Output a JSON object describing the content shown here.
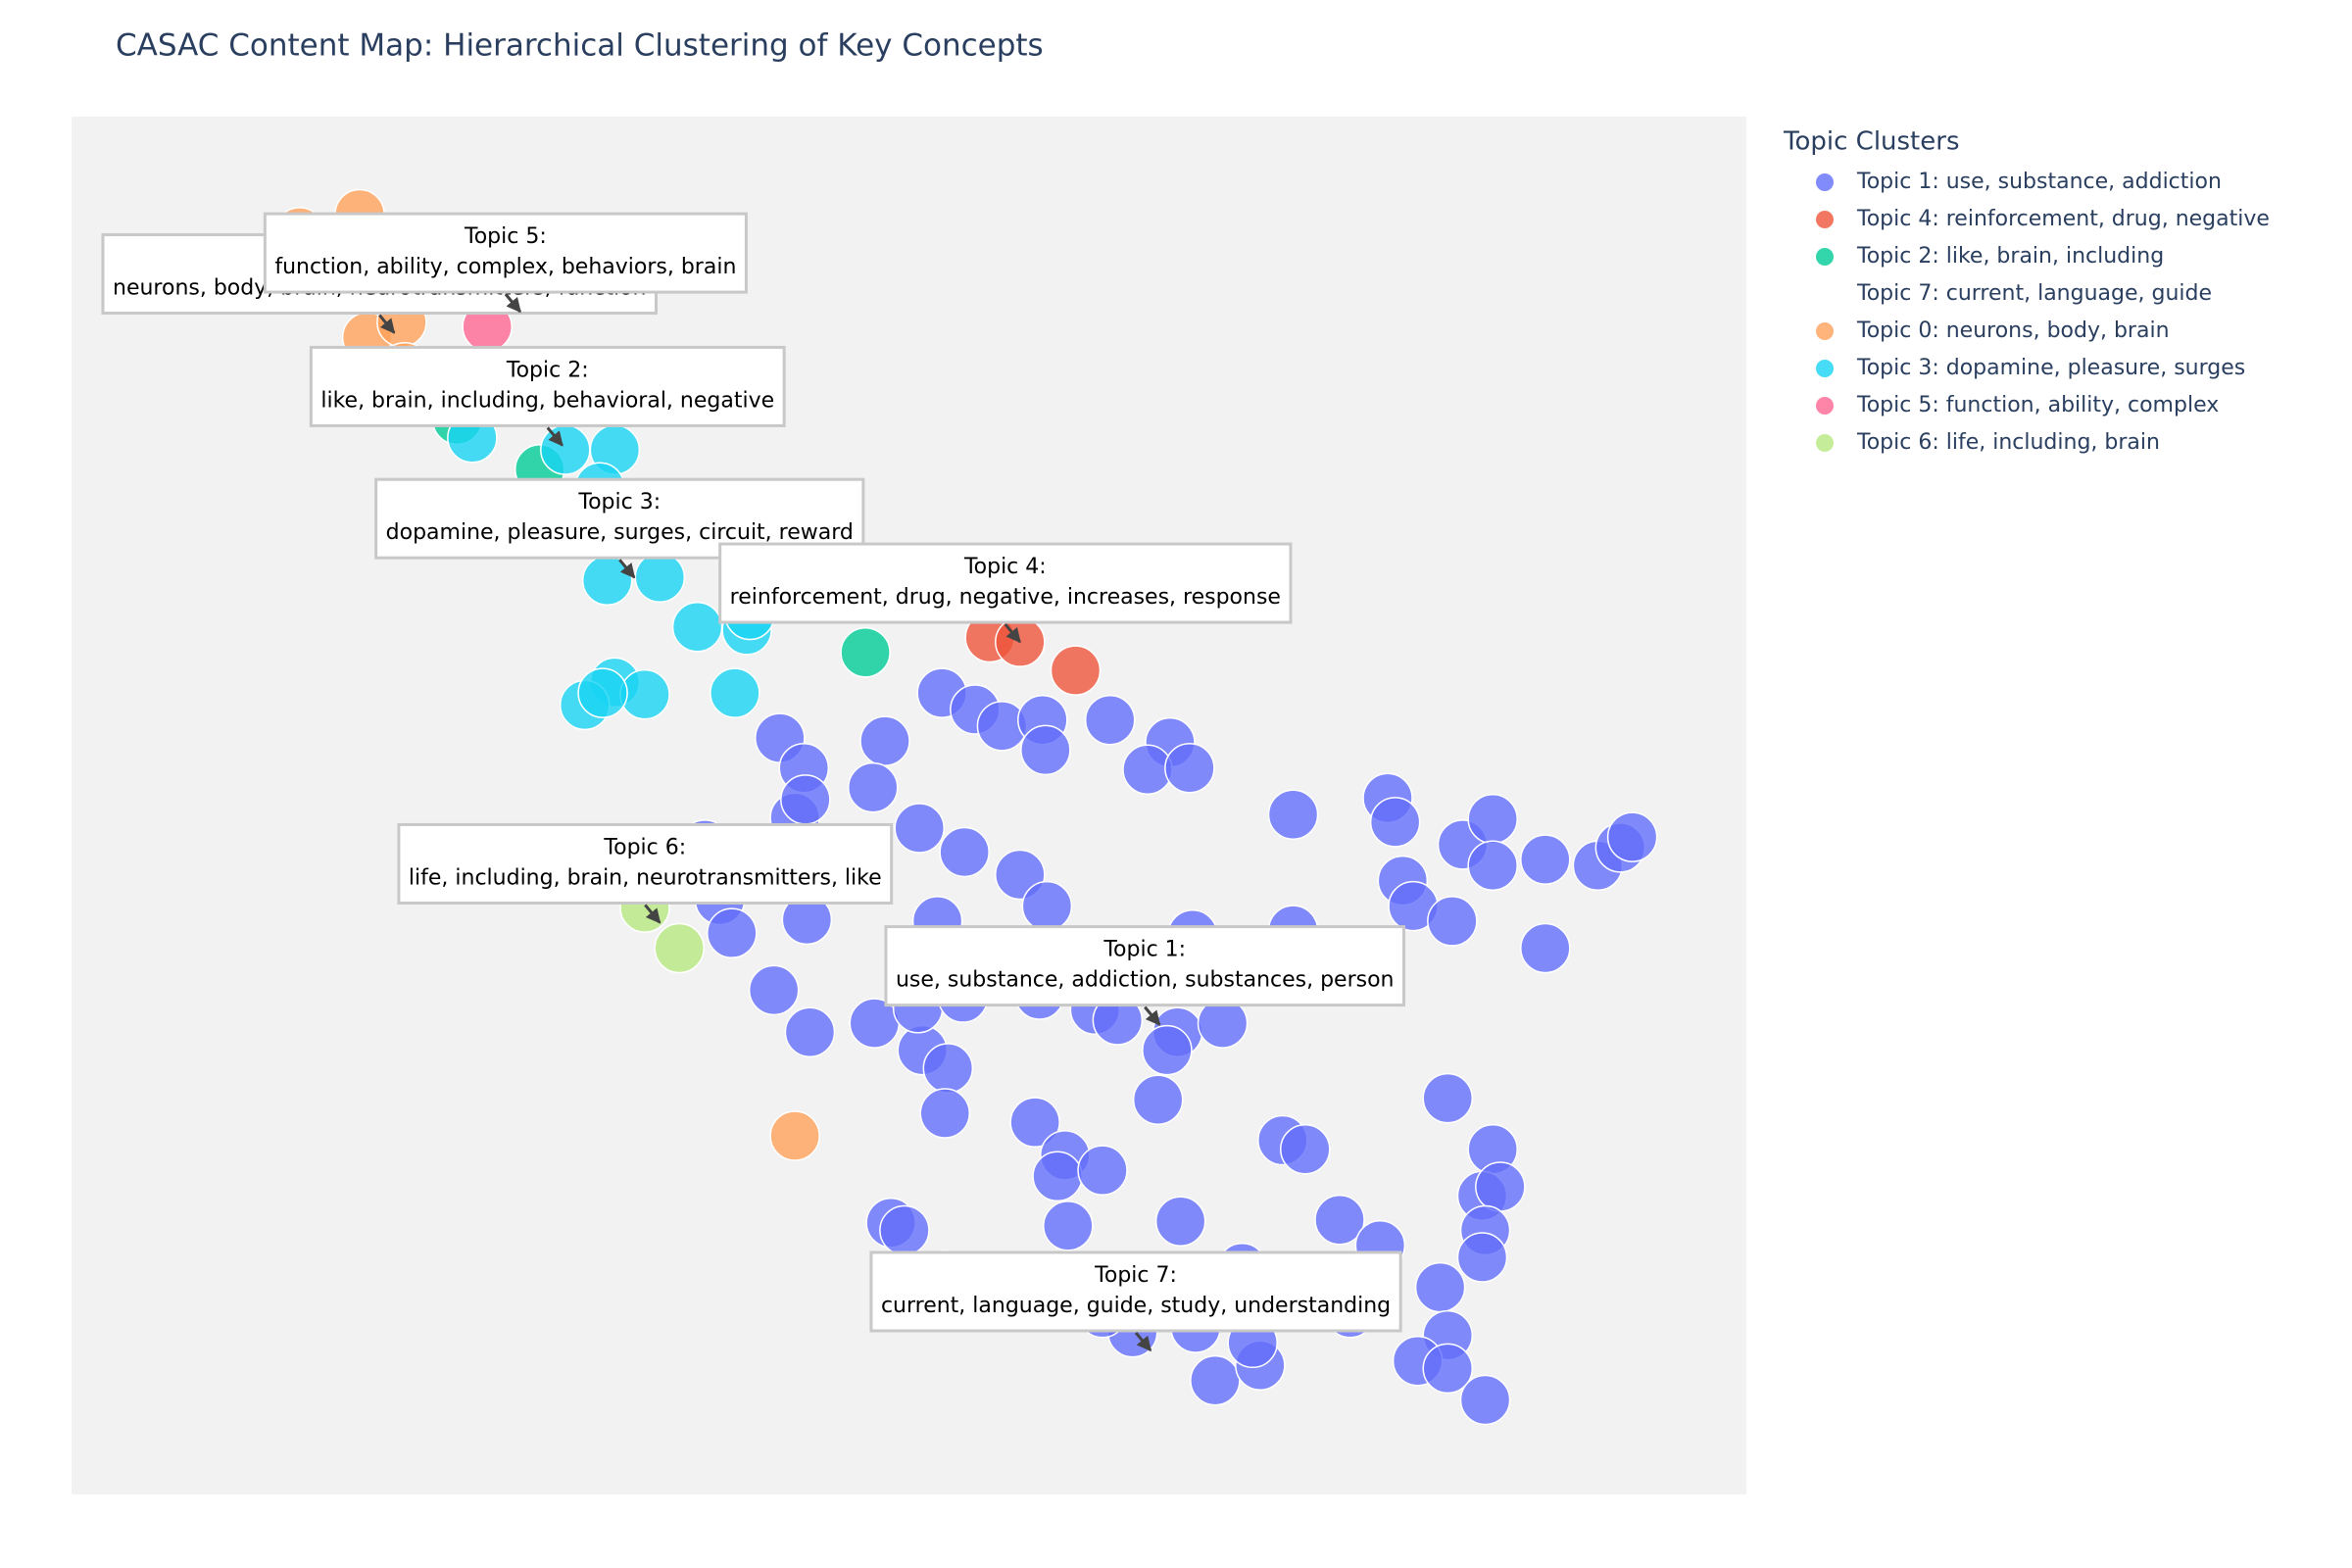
{
  "chart_data": {
    "type": "scatter",
    "title": "CASAC Content Map: Hierarchical Clustering of Key Concepts",
    "legend_title": "Topic Clusters",
    "legend_position": "right",
    "xlim": [
      0,
      11.16
    ],
    "ylim": [
      0,
      9.18
    ],
    "series": [
      {
        "name": "Topic 1: use, substance, addiction",
        "color": "#636efa",
        "x": [
          5.8,
          6.02,
          6.2,
          6.47,
          6.49,
          6.92,
          4.72,
          4.88,
          5.42,
          5.34,
          4.82,
          4.89,
          7.32,
          7.17,
          7.45,
          5.65,
          5.95,
          6.32,
          6.5,
          8.14,
          8.77,
          8.82,
          9.27,
          9.47,
          9.47,
          9.82,
          10.17,
          10.32,
          10.4,
          8.87,
          8.94,
          9.2,
          9.82,
          4.22,
          4.32,
          4.4,
          4.9,
          5.77,
          7.47,
          8.14,
          4.68,
          4.92,
          5.35,
          5.67,
          5.84,
          5.82,
          5.64,
          5.94,
          6.45,
          6.82,
          6.97,
          7.37,
          7.67,
          7.3,
          7.24,
          9.17,
          8.07,
          8.22,
          6.42,
          6.62,
          6.57,
          6.87,
          5.46,
          5.55,
          6.64,
          7.39,
          8.45,
          8.72,
          7.8,
          9.47,
          9.4,
          9.52,
          9.42,
          9.4,
          9.12,
          9.17,
          8.97,
          9.17,
          9.42,
          7.62,
          7.92,
          7.87,
          7.49,
          7.07,
          8.52,
          6.87,
          5.82
        ],
        "y": [
          5.34,
          5.23,
          5.12,
          5.16,
          4.96,
          5.16,
          5.04,
          4.84,
          5.02,
          4.71,
          4.51,
          4.63,
          5.01,
          4.83,
          4.84,
          4.44,
          4.28,
          4.13,
          3.92,
          4.53,
          4.64,
          4.48,
          4.33,
          4.5,
          4.19,
          4.23,
          4.19,
          4.31,
          4.38,
          4.09,
          3.92,
          3.82,
          3.64,
          4.33,
          3.96,
          3.74,
          3.83,
          3.82,
          3.73,
          3.76,
          3.36,
          3.08,
          3.14,
          2.96,
          2.84,
          2.54,
          3.24,
          3.31,
          3.33,
          3.23,
          3.16,
          3.08,
          3.14,
          2.96,
          2.63,
          2.64,
          2.36,
          2.3,
          2.48,
          2.26,
          2.12,
          2.16,
          1.81,
          1.76,
          1.79,
          1.82,
          1.83,
          1.66,
          1.51,
          2.3,
          1.99,
          2.05,
          1.76,
          1.58,
          1.38,
          1.06,
          0.89,
          0.84,
          0.63,
          0.76,
          0.86,
          1.01,
          1.11,
          1.08,
          1.21,
          1.21,
          1.46
        ]
      },
      {
        "name": "Topic 4: reinforcement, drug, negative",
        "color": "#ef553b",
        "x": [
          6.12,
          6.32,
          6.69
        ],
        "y": [
          5.71,
          5.68,
          5.49
        ]
      },
      {
        "name": "Topic 2: like, brain, including",
        "color": "#00cc96",
        "x": [
          3.12,
          5.29,
          2.57
        ],
        "y": [
          6.83,
          5.61,
          7.16
        ]
      },
      {
        "name": "Topic 7: current, language, guide",
        "x": [],
        "y": []
      },
      {
        "name": "Topic 0: neurons, body, brain",
        "color": "#ffa15a",
        "x": [
          1.52,
          1.92,
          2.27,
          1.82,
          1.97,
          2.2,
          2.22,
          4.82,
          2.07
        ],
        "y": [
          8.41,
          8.53,
          8.36,
          8.36,
          7.71,
          7.81,
          7.51,
          2.39,
          8.11
        ]
      },
      {
        "name": "Topic 3: dopamine, pleasure, surges",
        "color": "#19d3f3",
        "x": [
          2.67,
          3.29,
          3.62,
          3.52,
          3.57,
          3.92,
          4.17,
          4.5,
          4.52,
          4.42,
          3.62,
          3.42,
          3.82,
          3.54
        ],
        "y": [
          7.04,
          6.96,
          6.96,
          6.71,
          6.09,
          6.11,
          5.78,
          5.76,
          5.86,
          5.34,
          5.41,
          5.26,
          5.33,
          5.34
        ]
      },
      {
        "name": "Topic 5: function, ability, complex",
        "color": "#ff6692",
        "x": [
          2.77
        ],
        "y": [
          7.78
        ]
      },
      {
        "name": "Topic 6: life, including, brain",
        "color": "#b6e880",
        "x": [
          3.82,
          4.05
        ],
        "y": [
          3.91,
          3.64
        ]
      }
    ],
    "annotations": [
      {
        "text": [
          "Topic 0:",
          "neurons, body, brain, neurotransmitters, function"
        ],
        "x": 2.15,
        "y": 7.74
      },
      {
        "text": [
          "Topic 5:",
          "function, ability, complex, behaviors, brain"
        ],
        "x": 2.99,
        "y": 7.88
      },
      {
        "text": [
          "Topic 2:",
          "like, brain, including, behavioral, negative"
        ],
        "x": 3.27,
        "y": 6.99
      },
      {
        "text": [
          "Topic 3:",
          "dopamine, pleasure, surges, circuit, reward"
        ],
        "x": 3.75,
        "y": 6.11
      },
      {
        "text": [
          "Topic 4:",
          "reinforcement, drug, negative, increases, response"
        ],
        "x": 6.32,
        "y": 5.68
      },
      {
        "text": [
          "Topic 6:",
          "life, including, brain, neurotransmitters, like"
        ],
        "x": 3.92,
        "y": 3.81
      },
      {
        "text": [
          "Topic 1:",
          "use, substance, addiction, substances, person"
        ],
        "x": 7.25,
        "y": 3.13
      },
      {
        "text": [
          "Topic 7:",
          "current, language, guide, study, understanding"
        ],
        "x": 7.19,
        "y": 0.96
      }
    ]
  }
}
